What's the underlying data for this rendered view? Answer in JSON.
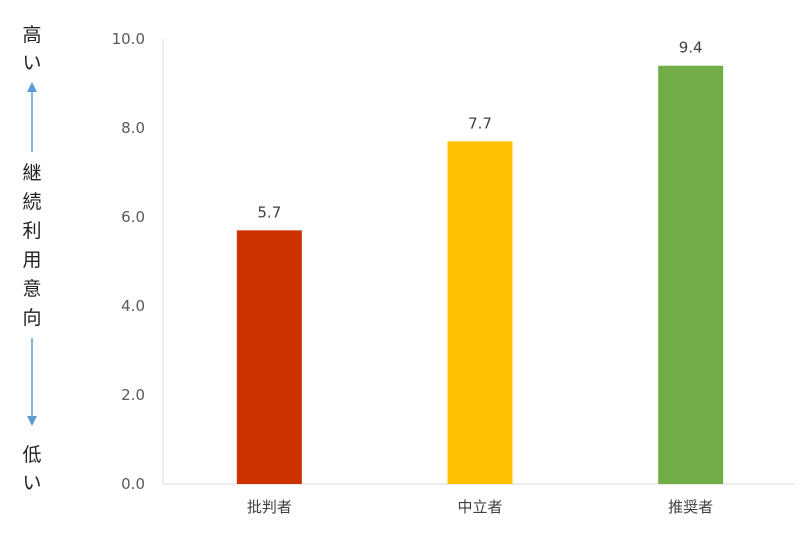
{
  "chart_data": {
    "type": "bar",
    "categories": [
      "批判者",
      "中立者",
      "推奨者"
    ],
    "values": [
      5.7,
      7.7,
      9.4
    ],
    "value_labels": [
      "5.7",
      "7.7",
      "9.4"
    ],
    "colors": [
      "#cc3300",
      "#ffc000",
      "#70ad47"
    ],
    "ylim": [
      0,
      10
    ],
    "yticks": [
      "0.0",
      "2.0",
      "4.0",
      "6.0",
      "8.0",
      "10.0"
    ],
    "ylabel": {
      "top": [
        "高",
        "い"
      ],
      "middle": [
        "継",
        "続",
        "利",
        "用",
        "意",
        "向"
      ],
      "bottom": [
        "低",
        "い"
      ]
    },
    "arrow_color": "#5b9bd5",
    "grid": false
  }
}
